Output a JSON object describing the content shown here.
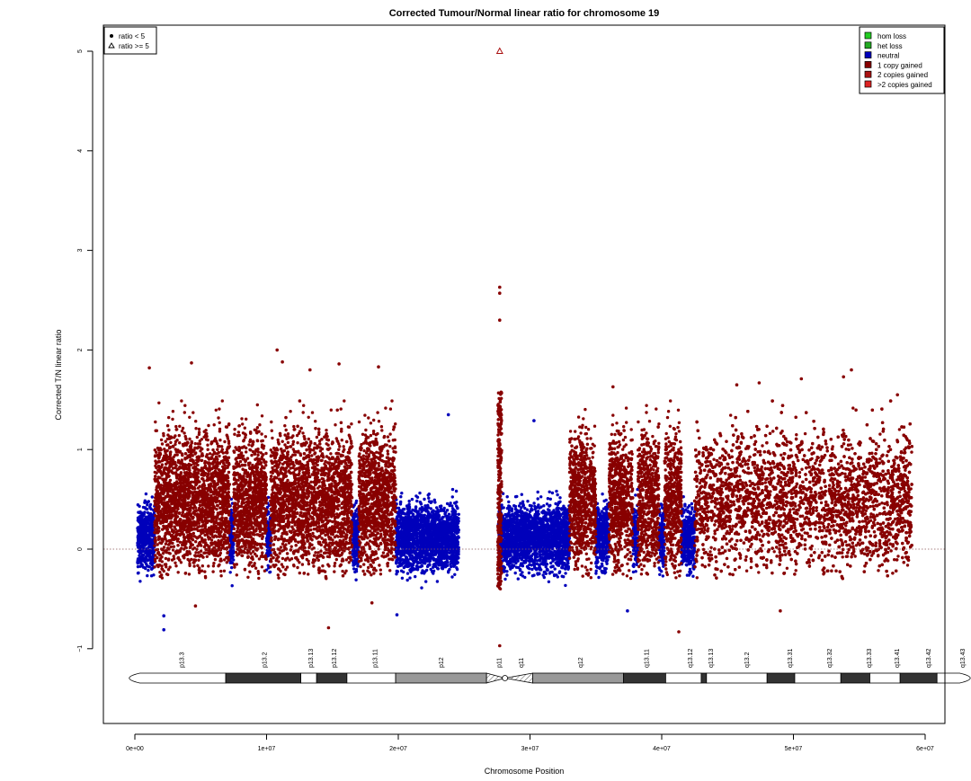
{
  "chart_data": {
    "type": "scatter",
    "title": "Corrected Tumour/Normal linear ratio for chromosome  19",
    "xlabel": "Chromosome Position",
    "ylabel": "Corrected T/N linear ratio",
    "xlim": [
      0,
      61000000
    ],
    "ylim": [
      -1.8,
      5.5
    ],
    "x_ticks": [
      0,
      10000000,
      20000000,
      30000000,
      40000000,
      50000000,
      60000000
    ],
    "x_tick_labels": [
      "0e+00",
      "1e+07",
      "2e+07",
      "3e+07",
      "4e+07",
      "5e+07",
      "6e+07"
    ],
    "y_ticks": [
      -1,
      0,
      1,
      2,
      3,
      4,
      5
    ],
    "y_tick_labels": [
      "−1",
      "0",
      "1",
      "2",
      "3",
      "4",
      "5"
    ],
    "reference_line": 0,
    "grid": false,
    "shape_legend": {
      "position": "top-left",
      "entries": [
        {
          "label": "ratio < 5",
          "marker": "filled-circle"
        },
        {
          "label": "ratio >= 5",
          "marker": "open-triangle"
        }
      ]
    },
    "color_legend": {
      "position": "top-right",
      "entries": [
        {
          "label": "hom loss",
          "color": "#22cc22"
        },
        {
          "label": "het loss",
          "color": "#22aa22"
        },
        {
          "label": "neutral",
          "color": "#0000bb"
        },
        {
          "label": "1 copy gained",
          "color": "#880000"
        },
        {
          "label": "2 copies gained",
          "color": "#aa1111"
        },
        {
          "label": ">2 copies gained",
          "color": "#dd2222"
        }
      ]
    },
    "colors": {
      "neutral": "#0000bb",
      "gain": "#880000",
      "high_gain": "#aa1111"
    },
    "segments": [
      {
        "start": 200000,
        "end": 1500000,
        "state": "neutral"
      },
      {
        "start": 1500000,
        "end": 7200000,
        "state": "gain"
      },
      {
        "start": 7200000,
        "end": 7500000,
        "state": "neutral"
      },
      {
        "start": 7500000,
        "end": 10000000,
        "state": "gain"
      },
      {
        "start": 10000000,
        "end": 10300000,
        "state": "neutral"
      },
      {
        "start": 10300000,
        "end": 16500000,
        "state": "gain"
      },
      {
        "start": 16500000,
        "end": 17000000,
        "state": "neutral"
      },
      {
        "start": 17000000,
        "end": 19800000,
        "state": "gain"
      },
      {
        "start": 19800000,
        "end": 24600000,
        "state": "neutral"
      },
      {
        "start": 27600000,
        "end": 28200000,
        "state": "neutral"
      },
      {
        "start": 28200000,
        "end": 33000000,
        "state": "neutral"
      },
      {
        "start": 33000000,
        "end": 35000000,
        "state": "gain"
      },
      {
        "start": 35000000,
        "end": 36000000,
        "state": "neutral"
      },
      {
        "start": 36000000,
        "end": 37800000,
        "state": "gain"
      },
      {
        "start": 37800000,
        "end": 38200000,
        "state": "neutral"
      },
      {
        "start": 38200000,
        "end": 39800000,
        "state": "gain"
      },
      {
        "start": 39800000,
        "end": 40200000,
        "state": "neutral"
      },
      {
        "start": 40200000,
        "end": 41500000,
        "state": "gain"
      },
      {
        "start": 41500000,
        "end": 42500000,
        "state": "neutral"
      },
      {
        "start": 42500000,
        "end": 59000000,
        "state": "gain"
      }
    ],
    "notable_points": [
      {
        "x": 27700000,
        "y": 5.0,
        "state": "high_gain",
        "marker": "open-triangle"
      },
      {
        "x": 27700000,
        "y": 2.63,
        "state": "gain"
      },
      {
        "x": 27700000,
        "y": 2.57,
        "state": "gain"
      },
      {
        "x": 27700000,
        "y": 2.3,
        "state": "gain"
      },
      {
        "x": 27700000,
        "y": -0.97,
        "state": "gain"
      },
      {
        "x": 10800000,
        "y": 2.0,
        "state": "gain"
      },
      {
        "x": 11200000,
        "y": 1.88,
        "state": "gain"
      },
      {
        "x": 4300000,
        "y": 1.87,
        "state": "gain"
      },
      {
        "x": 15500000,
        "y": 1.86,
        "state": "gain"
      },
      {
        "x": 1100000,
        "y": 1.82,
        "state": "gain"
      },
      {
        "x": 18500000,
        "y": 1.83,
        "state": "gain"
      },
      {
        "x": 13300000,
        "y": 1.8,
        "state": "gain"
      },
      {
        "x": 54400000,
        "y": 1.8,
        "state": "gain"
      },
      {
        "x": 53800000,
        "y": 1.73,
        "state": "gain"
      },
      {
        "x": 50600000,
        "y": 1.71,
        "state": "gain"
      },
      {
        "x": 47400000,
        "y": 1.67,
        "state": "gain"
      },
      {
        "x": 45700000,
        "y": 1.65,
        "state": "gain"
      },
      {
        "x": 36300000,
        "y": 1.63,
        "state": "gain"
      },
      {
        "x": 57900000,
        "y": 1.55,
        "state": "gain"
      },
      {
        "x": 23800000,
        "y": 1.35,
        "state": "neutral"
      },
      {
        "x": 30300000,
        "y": 1.29,
        "state": "neutral"
      },
      {
        "x": 2200000,
        "y": -0.67,
        "state": "neutral"
      },
      {
        "x": 2200000,
        "y": -0.81,
        "state": "neutral"
      },
      {
        "x": 4600000,
        "y": -0.57,
        "state": "gain"
      },
      {
        "x": 14700000,
        "y": -0.79,
        "state": "gain"
      },
      {
        "x": 18000000,
        "y": -0.54,
        "state": "gain"
      },
      {
        "x": 19900000,
        "y": -0.66,
        "state": "neutral"
      },
      {
        "x": 37400000,
        "y": -0.62,
        "state": "neutral"
      },
      {
        "x": 41300000,
        "y": -0.83,
        "state": "gain"
      },
      {
        "x": 49000000,
        "y": -0.62,
        "state": "gain"
      }
    ],
    "cytobands": {
      "start": 0,
      "end": 63000000,
      "centromere": 28100000,
      "labels": [
        {
          "name": "p13.3",
          "pos": 3500000
        },
        {
          "name": "p13.2",
          "pos": 9800000
        },
        {
          "name": "p13.13",
          "pos": 13300000
        },
        {
          "name": "p13.12",
          "pos": 15100000
        },
        {
          "name": "p13.11",
          "pos": 18200000
        },
        {
          "name": "p12",
          "pos": 23200000
        },
        {
          "name": "p11",
          "pos": 27600000
        },
        {
          "name": "q11",
          "pos": 29300000
        },
        {
          "name": "q12",
          "pos": 33800000
        },
        {
          "name": "q13.11",
          "pos": 38800000
        },
        {
          "name": "q13.12",
          "pos": 42100000
        },
        {
          "name": "q13.13",
          "pos": 43700000
        },
        {
          "name": "q13.2",
          "pos": 46400000
        },
        {
          "name": "q13.31",
          "pos": 49700000
        },
        {
          "name": "q13.32",
          "pos": 52700000
        },
        {
          "name": "q13.33",
          "pos": 55700000
        },
        {
          "name": "q13.41",
          "pos": 57800000
        },
        {
          "name": "q13.42",
          "pos": 60200000
        },
        {
          "name": "q13.43",
          "pos": 62800000
        }
      ],
      "bands": [
        {
          "start": 0,
          "end": 6900000,
          "stain": "gneg"
        },
        {
          "start": 6900000,
          "end": 12600000,
          "stain": "gpos75"
        },
        {
          "start": 12600000,
          "end": 13800000,
          "stain": "gneg"
        },
        {
          "start": 13800000,
          "end": 16100000,
          "stain": "gpos75"
        },
        {
          "start": 16100000,
          "end": 19800000,
          "stain": "gneg"
        },
        {
          "start": 19800000,
          "end": 26700000,
          "stain": "gpos50"
        },
        {
          "start": 26700000,
          "end": 28100000,
          "stain": "acen"
        },
        {
          "start": 28100000,
          "end": 30200000,
          "stain": "acen"
        },
        {
          "start": 30200000,
          "end": 37100000,
          "stain": "gpos50"
        },
        {
          "start": 37100000,
          "end": 40300000,
          "stain": "gpos75"
        },
        {
          "start": 40300000,
          "end": 43000000,
          "stain": "gneg"
        },
        {
          "start": 43000000,
          "end": 43400000,
          "stain": "gpos75"
        },
        {
          "start": 43400000,
          "end": 48000000,
          "stain": "gneg"
        },
        {
          "start": 48000000,
          "end": 50100000,
          "stain": "gpos75"
        },
        {
          "start": 50100000,
          "end": 53600000,
          "stain": "gneg"
        },
        {
          "start": 53600000,
          "end": 55800000,
          "stain": "gpos75"
        },
        {
          "start": 55800000,
          "end": 58100000,
          "stain": "gneg"
        },
        {
          "start": 58100000,
          "end": 60900000,
          "stain": "gpos75"
        },
        {
          "start": 60900000,
          "end": 63000000,
          "stain": "gneg"
        }
      ]
    }
  }
}
